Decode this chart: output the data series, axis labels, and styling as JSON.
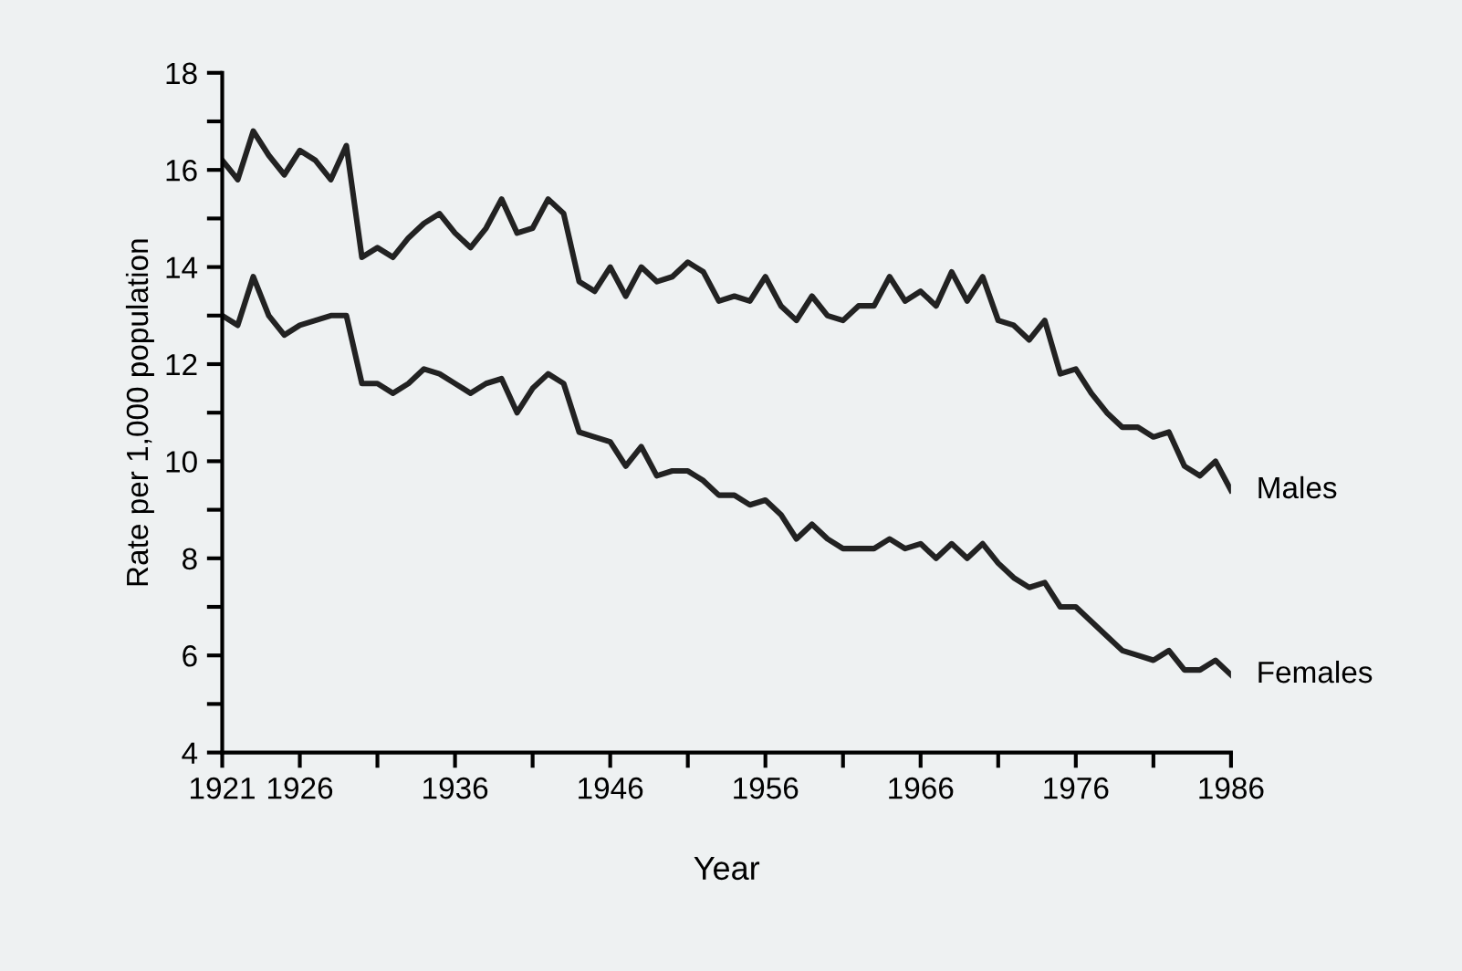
{
  "chart_data": {
    "type": "line",
    "xlabel": "Year",
    "ylabel": "Rate per 1,000 population",
    "x": [
      1921,
      1922,
      1923,
      1924,
      1925,
      1926,
      1927,
      1928,
      1929,
      1930,
      1931,
      1932,
      1933,
      1934,
      1935,
      1936,
      1937,
      1938,
      1939,
      1940,
      1941,
      1942,
      1943,
      1944,
      1945,
      1946,
      1947,
      1948,
      1949,
      1950,
      1951,
      1952,
      1953,
      1954,
      1955,
      1956,
      1957,
      1958,
      1959,
      1960,
      1961,
      1962,
      1963,
      1964,
      1965,
      1966,
      1967,
      1968,
      1969,
      1970,
      1971,
      1972,
      1973,
      1974,
      1975,
      1976,
      1977,
      1978,
      1979,
      1980,
      1981,
      1982,
      1983,
      1984,
      1985,
      1986
    ],
    "series": [
      {
        "name": "Males",
        "color": "#222222",
        "values": [
          16.2,
          15.8,
          16.8,
          16.3,
          15.9,
          16.4,
          16.2,
          15.8,
          16.5,
          14.2,
          14.4,
          14.2,
          14.6,
          14.9,
          15.1,
          14.7,
          14.4,
          14.8,
          15.4,
          14.7,
          14.8,
          15.4,
          15.1,
          13.7,
          13.5,
          14.0,
          13.4,
          14.0,
          13.7,
          13.8,
          14.1,
          13.9,
          13.3,
          13.4,
          13.3,
          13.8,
          13.2,
          12.9,
          13.4,
          13.0,
          12.9,
          13.2,
          13.2,
          13.8,
          13.3,
          13.5,
          13.2,
          13.9,
          13.3,
          13.8,
          12.9,
          12.8,
          12.5,
          12.9,
          11.8,
          11.9,
          11.4,
          11.0,
          10.7,
          10.7,
          10.5,
          10.6,
          9.9,
          9.7,
          10.0,
          9.4
        ]
      },
      {
        "name": "Females",
        "color": "#222222",
        "values": [
          13.0,
          12.8,
          13.8,
          13.0,
          12.6,
          12.8,
          12.9,
          13.0,
          13.0,
          11.6,
          11.6,
          11.4,
          11.6,
          11.9,
          11.8,
          11.6,
          11.4,
          11.6,
          11.7,
          11.0,
          11.5,
          11.8,
          11.6,
          10.6,
          10.5,
          10.4,
          9.9,
          10.3,
          9.7,
          9.8,
          9.8,
          9.6,
          9.3,
          9.3,
          9.1,
          9.2,
          8.9,
          8.4,
          8.7,
          8.4,
          8.2,
          8.2,
          8.2,
          8.4,
          8.2,
          8.3,
          8.0,
          8.3,
          8.0,
          8.3,
          7.9,
          7.6,
          7.4,
          7.5,
          7.0,
          7.0,
          6.7,
          6.4,
          6.1,
          6.0,
          5.9,
          6.1,
          5.7,
          5.7,
          5.9,
          5.6
        ]
      }
    ],
    "xlim": [
      1921,
      1986
    ],
    "xticks": [
      1921,
      1926,
      {
        "value": 1931,
        "label": null
      },
      1936,
      {
        "value": 1941,
        "label": null
      },
      1946,
      {
        "value": 1951,
        "label": null
      },
      1956,
      {
        "value": 1961,
        "label": null
      },
      1966,
      {
        "value": 1971,
        "label": null
      },
      1976,
      {
        "value": 1981,
        "label": null
      },
      1986
    ],
    "ylim": [
      4,
      18
    ],
    "yticks": [
      4,
      {
        "value": 5,
        "label": null
      },
      6,
      {
        "value": 7,
        "label": null
      },
      8,
      {
        "value": 9,
        "label": null
      },
      10,
      {
        "value": 11,
        "label": null
      },
      12,
      {
        "value": 13,
        "label": null
      },
      14,
      {
        "value": 15,
        "label": null
      },
      16,
      {
        "value": 17,
        "label": null
      },
      18
    ],
    "grid": false,
    "legend": false,
    "marker": "none",
    "line_style": "solid"
  }
}
